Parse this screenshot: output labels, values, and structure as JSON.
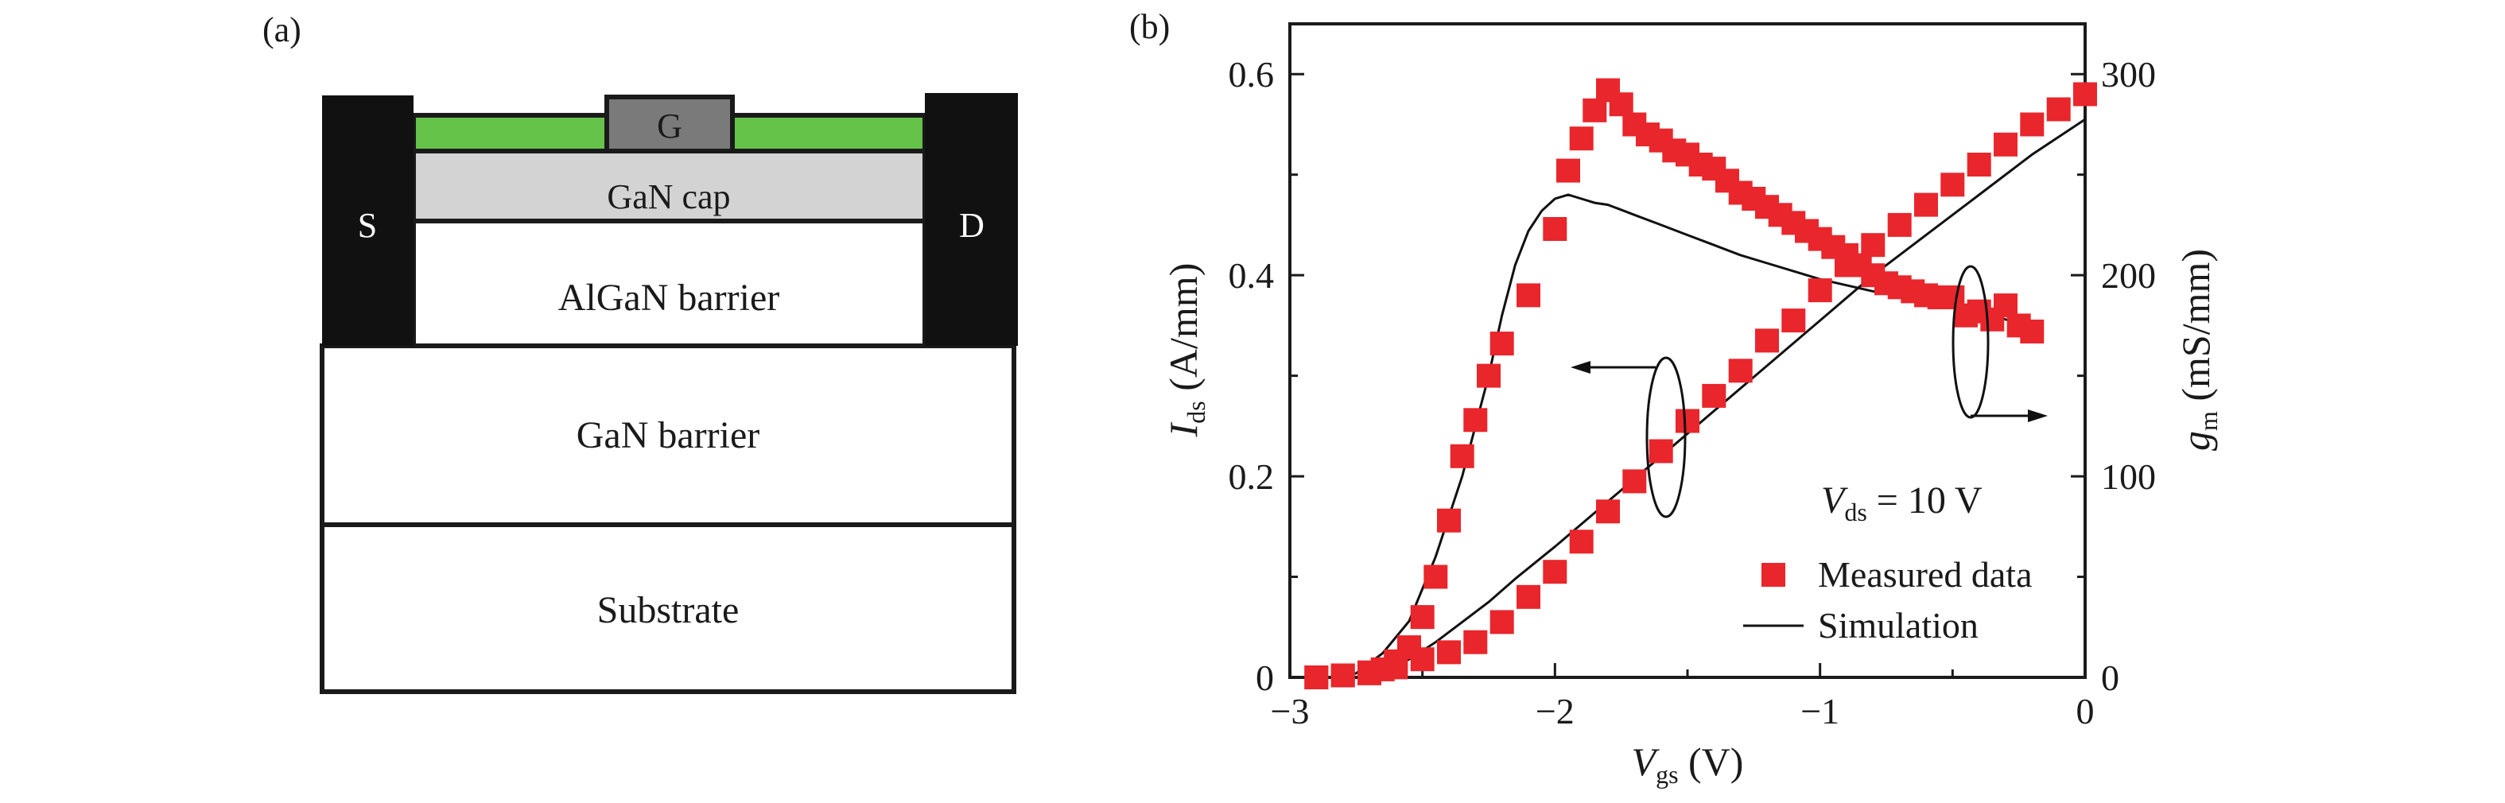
{
  "panel_a": {
    "label": "(a)",
    "layers": {
      "gate": "G",
      "source": "S",
      "drain": "D",
      "cap": "GaN cap",
      "algan": "AlGaN barrier",
      "gan": "GaN barrier",
      "substrate": "Substrate"
    },
    "colors": {
      "metal": "#111111",
      "passivation": "#66c34a",
      "gate": "#7a7a7a",
      "cap": "#d3d3d3",
      "layer": "#ffffff",
      "outline": "#1a1a1a"
    }
  },
  "panel_b": {
    "label": "(b)",
    "annotation": {
      "prefix": "V",
      "sub": "ds",
      "suffix": " = 10 V"
    },
    "xlabel": {
      "main": "V",
      "sub": "gs",
      "unit": " (V)"
    },
    "ylabel_left": {
      "main": "I",
      "sub": "ds",
      "unit": " (A/mm)"
    },
    "ylabel_right": {
      "main": "g",
      "sub": "m",
      "unit": " (mS/mm)"
    },
    "legend": {
      "measured": "Measured data",
      "simulation": "Simulation"
    },
    "colors": {
      "measured": "#e8262c",
      "simulation": "#111111",
      "axis": "#1a1a1a"
    }
  },
  "chart_data": {
    "type": "scatter",
    "x_range": [
      -3,
      0
    ],
    "y_left_range": [
      0,
      0.65
    ],
    "y_right_range": [
      0,
      325
    ],
    "x_ticks": [
      -3,
      -2,
      -1,
      0
    ],
    "x_tick_labels": [
      "−3",
      "−2",
      "−1",
      "0"
    ],
    "y_left_ticks": [
      0,
      0.2,
      0.4,
      0.6
    ],
    "y_left_tick_labels": [
      "0",
      "0.2",
      "0.4",
      "0.6"
    ],
    "y_right_ticks": [
      0,
      100,
      200,
      300
    ],
    "y_right_tick_labels": [
      "0",
      "100",
      "200",
      "300"
    ],
    "legend_position": "bottom-right",
    "series": [
      {
        "name": "Measured data",
        "axis": "left",
        "style": "marker",
        "x": [
          -2.9,
          -2.8,
          -2.7,
          -2.6,
          -2.5,
          -2.4,
          -2.3,
          -2.2,
          -2.1,
          -2.0,
          -1.9,
          -1.8,
          -1.7,
          -1.6,
          -1.5,
          -1.4,
          -1.3,
          -1.2,
          -1.1,
          -1.0,
          -0.9,
          -0.8,
          -0.7,
          -0.6,
          -0.5,
          -0.4,
          -0.3,
          -0.2,
          -0.1,
          0.0
        ],
        "y": [
          0.0,
          0.002,
          0.005,
          0.01,
          0.018,
          0.025,
          0.035,
          0.055,
          0.08,
          0.105,
          0.135,
          0.165,
          0.195,
          0.225,
          0.255,
          0.28,
          0.305,
          0.335,
          0.355,
          0.385,
          0.41,
          0.43,
          0.45,
          0.47,
          0.49,
          0.51,
          0.53,
          0.55,
          0.565,
          0.58
        ]
      },
      {
        "name": "Measured data",
        "axis": "right",
        "style": "marker",
        "x": [
          -2.9,
          -2.8,
          -2.7,
          -2.65,
          -2.6,
          -2.55,
          -2.5,
          -2.45,
          -2.4,
          -2.35,
          -2.3,
          -2.25,
          -2.2,
          -2.1,
          -2.0,
          -1.95,
          -1.9,
          -1.85,
          -1.8,
          -1.75,
          -1.7,
          -1.65,
          -1.6,
          -1.55,
          -1.5,
          -1.45,
          -1.4,
          -1.35,
          -1.3,
          -1.25,
          -1.2,
          -1.15,
          -1.1,
          -1.05,
          -1.0,
          -0.95,
          -0.9,
          -0.85,
          -0.8,
          -0.75,
          -0.7,
          -0.65,
          -0.6,
          -0.55,
          -0.5,
          -0.45,
          -0.4,
          -0.35,
          -0.3,
          -0.25,
          -0.2
        ],
        "y": [
          0,
          1,
          2,
          4,
          8,
          15,
          30,
          50,
          78,
          110,
          128,
          150,
          166,
          190,
          223,
          252,
          268,
          282,
          292,
          285,
          275,
          270,
          267,
          262,
          260,
          255,
          253,
          247,
          241,
          238,
          234,
          230,
          226,
          222,
          218,
          214,
          210,
          205,
          200,
          196,
          194,
          192,
          190,
          189,
          189,
          180,
          182,
          178,
          185,
          175,
          172
        ]
      },
      {
        "name": "Simulation",
        "axis": "left",
        "style": "line",
        "x": [
          -2.75,
          -2.65,
          -2.55,
          -2.45,
          -2.35,
          -2.25,
          -2.15,
          -2.0,
          -1.8,
          -1.6,
          -1.4,
          -1.2,
          -1.0,
          -0.8,
          -0.6,
          -0.4,
          -0.2,
          0.0
        ],
        "y": [
          0.0,
          0.005,
          0.018,
          0.035,
          0.055,
          0.075,
          0.098,
          0.13,
          0.175,
          0.22,
          0.265,
          0.31,
          0.355,
          0.4,
          0.44,
          0.48,
          0.52,
          0.555
        ]
      },
      {
        "name": "Simulation",
        "axis": "right",
        "style": "line",
        "x": [
          -2.85,
          -2.75,
          -2.65,
          -2.55,
          -2.45,
          -2.35,
          -2.25,
          -2.2,
          -2.15,
          -2.1,
          -2.05,
          -2.0,
          -1.95,
          -1.9,
          -1.85,
          -1.8,
          -1.7,
          -1.6,
          -1.5,
          -1.4,
          -1.3,
          -1.2,
          -1.1,
          -1.0,
          -0.9,
          -0.8,
          -0.7,
          -0.6,
          -0.5,
          -0.4,
          -0.3,
          -0.2
        ],
        "y": [
          0,
          2,
          12,
          28,
          60,
          100,
          150,
          180,
          205,
          222,
          232,
          238,
          240,
          238,
          236,
          235,
          230,
          225,
          220,
          215,
          210,
          206,
          202,
          198,
          195,
          192,
          190,
          187,
          185,
          182,
          178,
          175
        ]
      }
    ]
  }
}
